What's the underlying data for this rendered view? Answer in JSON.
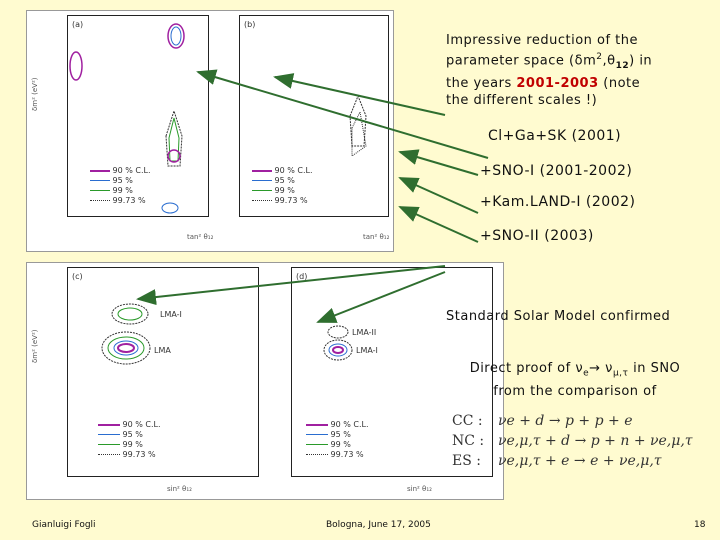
{
  "notes": {
    "main_line1": "Impressive reduction of  the",
    "main_line2_pre": "parameter space (",
    "main_line2_mid": "m",
    "main_line2_theta": "12",
    "main_line2_post": ")  in",
    "main_line3_pre": "the years ",
    "main_line3_years": "2001-2003",
    "main_line3_post": " (note",
    "main_line4": "the different scales !)",
    "item1": "Cl+Ga+SK (2001)",
    "item2": "+SNO-I (2001-2002)",
    "item3": "+Kam.LAND-I (2002)",
    "item4": "+SNO-II (2003)",
    "ssm": "Standard Solar Model confirmed",
    "direct_pre": "Direct proof of  ",
    "direct_post": " in SNO",
    "comparison": "from the comparison of"
  },
  "reactions": {
    "cc_label": "CC :",
    "cc": "νe + d → p + p + e",
    "nc_label": "NC :",
    "nc": "νe,μ,τ + d → p + n + νe,μ,τ",
    "es_label": "ES :",
    "es": "νe,μ,τ + e → e + νe,μ,τ"
  },
  "panels": {
    "a": "(a)",
    "b": "(b)",
    "c": "(c)",
    "d": "(d)",
    "lma1": "LMA-I",
    "lma2": "LMA-II",
    "lma": "LMA",
    "ylabel": "δm² (eV²)",
    "xlabel_top": "tan² θ₁₂",
    "xlabel_bottom": "sin² θ₁₂"
  },
  "legend": [
    "90 % C.L.",
    "95 %",
    "99 %",
    "99.73 %"
  ],
  "footer": {
    "author": "Gianluigi Fogli",
    "venue": "Bologna, June 17, 2005",
    "page": "18"
  }
}
